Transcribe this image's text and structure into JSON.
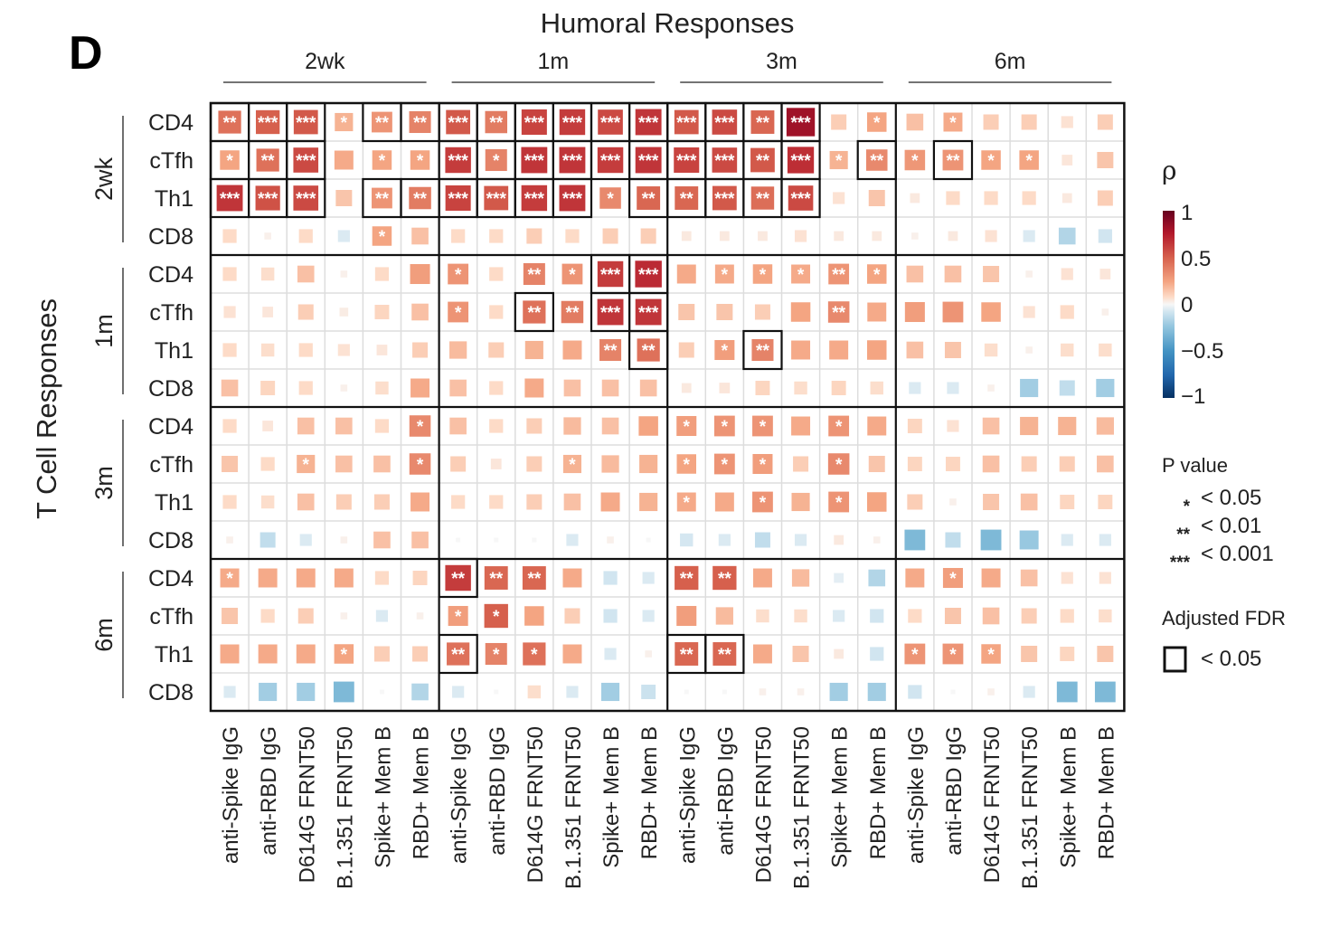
{
  "panel_label": "D",
  "chart_data": {
    "type": "heatmap",
    "title": "Humoral Responses",
    "ylabel": "T Cell Responses",
    "x_groups": [
      "2wk",
      "1m",
      "3m",
      "6m"
    ],
    "x_measures": [
      "anti-Spike IgG",
      "anti-RBD IgG",
      "D614G FRNT50",
      "B.1.351 FRNT50",
      "Spike+ Mem B",
      "RBD+ Mem B"
    ],
    "y_groups": [
      "2wk",
      "1m",
      "3m",
      "6m"
    ],
    "y_measures": [
      "CD4",
      "cTfh",
      "Th1",
      "CD8"
    ],
    "rho": [
      [
        0.55,
        0.6,
        0.62,
        0.35,
        0.45,
        0.5,
        0.62,
        0.52,
        0.68,
        0.7,
        0.66,
        0.72,
        0.62,
        0.66,
        0.58,
        0.85,
        0.25,
        0.4,
        0.3,
        0.38,
        0.25,
        0.25,
        0.15,
        0.25
      ],
      [
        0.4,
        0.55,
        0.66,
        0.38,
        0.4,
        0.4,
        0.7,
        0.5,
        0.72,
        0.72,
        0.7,
        0.72,
        0.68,
        0.66,
        0.62,
        0.74,
        0.35,
        0.48,
        0.44,
        0.45,
        0.4,
        0.4,
        0.12,
        0.28
      ],
      [
        0.72,
        0.64,
        0.66,
        0.28,
        0.45,
        0.52,
        0.68,
        0.62,
        0.7,
        0.72,
        0.48,
        0.58,
        0.58,
        0.62,
        0.56,
        0.66,
        0.15,
        0.28,
        0.1,
        0.2,
        0.2,
        0.2,
        0.1,
        0.25
      ],
      [
        0.2,
        0.05,
        0.2,
        -0.15,
        0.4,
        0.3,
        0.2,
        0.2,
        0.25,
        0.2,
        0.25,
        0.25,
        0.1,
        0.1,
        0.1,
        0.15,
        0.1,
        0.1,
        0.05,
        0.1,
        0.15,
        -0.15,
        -0.3,
        -0.2
      ],
      [
        0.2,
        0.18,
        0.3,
        0.05,
        0.2,
        0.42,
        0.45,
        0.2,
        0.5,
        0.45,
        0.7,
        0.75,
        0.38,
        0.38,
        0.4,
        0.38,
        0.45,
        0.4,
        0.3,
        0.3,
        0.28,
        0.05,
        0.15,
        0.12
      ],
      [
        0.15,
        0.12,
        0.25,
        0.08,
        0.22,
        0.3,
        0.45,
        0.2,
        0.55,
        0.52,
        0.72,
        0.72,
        0.28,
        0.28,
        0.25,
        0.4,
        0.48,
        0.38,
        0.42,
        0.45,
        0.4,
        0.15,
        0.2,
        0.05
      ],
      [
        0.2,
        0.18,
        0.2,
        0.15,
        0.12,
        0.25,
        0.32,
        0.25,
        0.35,
        0.38,
        0.5,
        0.55,
        0.25,
        0.42,
        0.5,
        0.38,
        0.38,
        0.4,
        0.3,
        0.28,
        0.18,
        0.05,
        0.18,
        0.18
      ],
      [
        0.3,
        0.22,
        0.2,
        0.05,
        0.18,
        0.38,
        0.3,
        0.2,
        0.38,
        0.3,
        0.3,
        0.3,
        0.1,
        0.12,
        0.22,
        0.18,
        0.22,
        0.18,
        -0.15,
        -0.15,
        0.05,
        -0.35,
        -0.25,
        -0.35
      ],
      [
        0.2,
        0.12,
        0.3,
        0.3,
        0.2,
        0.48,
        0.3,
        0.2,
        0.25,
        0.32,
        0.3,
        0.4,
        0.42,
        0.45,
        0.45,
        0.38,
        0.45,
        0.38,
        0.22,
        0.15,
        0.3,
        0.35,
        0.35,
        0.32
      ],
      [
        0.28,
        0.2,
        0.35,
        0.3,
        0.3,
        0.48,
        0.25,
        0.12,
        0.25,
        0.35,
        0.32,
        0.35,
        0.4,
        0.45,
        0.42,
        0.25,
        0.48,
        0.28,
        0.22,
        0.22,
        0.3,
        0.25,
        0.25,
        0.3
      ],
      [
        0.2,
        0.18,
        0.3,
        0.25,
        0.25,
        0.38,
        0.2,
        0.2,
        0.25,
        0.3,
        0.38,
        0.35,
        0.38,
        0.38,
        0.45,
        0.35,
        0.45,
        0.4,
        0.25,
        0.05,
        0.28,
        0.3,
        0.22,
        0.22
      ],
      [
        0.05,
        -0.25,
        -0.15,
        0.05,
        0.3,
        0.3,
        0.0,
        0.0,
        0.0,
        -0.15,
        0.05,
        0.0,
        -0.18,
        -0.15,
        -0.25,
        -0.15,
        0.1,
        0.05,
        -0.45,
        -0.25,
        -0.45,
        -0.38,
        -0.15,
        -0.15
      ],
      [
        0.38,
        0.38,
        0.38,
        0.38,
        0.2,
        0.22,
        0.7,
        0.58,
        0.58,
        0.38,
        -0.2,
        -0.15,
        0.6,
        0.6,
        0.38,
        0.32,
        -0.1,
        -0.3,
        0.38,
        0.42,
        0.38,
        0.3,
        0.15,
        0.15
      ],
      [
        0.28,
        0.2,
        0.25,
        0.05,
        -0.15,
        0.05,
        0.42,
        0.6,
        0.4,
        0.25,
        -0.2,
        -0.15,
        0.42,
        0.32,
        0.18,
        0.18,
        -0.15,
        -0.2,
        0.2,
        0.28,
        0.3,
        0.25,
        0.2,
        0.18
      ],
      [
        0.38,
        0.38,
        0.38,
        0.4,
        0.25,
        0.25,
        0.55,
        0.5,
        0.55,
        0.38,
        -0.15,
        0.05,
        0.58,
        0.58,
        0.38,
        0.28,
        0.1,
        -0.2,
        0.45,
        0.45,
        0.4,
        0.28,
        0.22,
        0.28
      ],
      [
        -0.15,
        -0.35,
        -0.35,
        -0.45,
        0.0,
        -0.3,
        -0.15,
        0.0,
        0.18,
        -0.15,
        -0.35,
        -0.22,
        0.0,
        0.0,
        0.05,
        0.05,
        -0.35,
        -0.35,
        -0.2,
        0.0,
        0.05,
        -0.15,
        -0.45,
        -0.45
      ]
    ],
    "stars": [
      [
        2,
        3,
        3,
        1,
        2,
        2,
        3,
        2,
        3,
        3,
        3,
        3,
        3,
        3,
        2,
        3,
        0,
        1,
        0,
        1,
        0,
        0,
        0,
        0
      ],
      [
        1,
        2,
        3,
        0,
        1,
        1,
        3,
        1,
        3,
        3,
        3,
        3,
        3,
        3,
        2,
        3,
        1,
        2,
        1,
        2,
        1,
        1,
        0,
        0
      ],
      [
        3,
        3,
        3,
        0,
        2,
        2,
        3,
        3,
        3,
        3,
        1,
        2,
        2,
        3,
        2,
        3,
        0,
        0,
        0,
        0,
        0,
        0,
        0,
        0
      ],
      [
        0,
        0,
        0,
        0,
        1,
        0,
        0,
        0,
        0,
        0,
        0,
        0,
        0,
        0,
        0,
        0,
        0,
        0,
        0,
        0,
        0,
        0,
        0,
        0
      ],
      [
        0,
        0,
        0,
        0,
        0,
        0,
        1,
        0,
        2,
        1,
        3,
        3,
        0,
        1,
        1,
        1,
        2,
        1,
        0,
        0,
        0,
        0,
        0,
        0
      ],
      [
        0,
        0,
        0,
        0,
        0,
        0,
        1,
        0,
        2,
        2,
        3,
        3,
        0,
        0,
        0,
        0,
        2,
        0,
        0,
        0,
        0,
        0,
        0,
        0
      ],
      [
        0,
        0,
        0,
        0,
        0,
        0,
        0,
        0,
        0,
        0,
        2,
        2,
        0,
        1,
        2,
        0,
        0,
        0,
        0,
        0,
        0,
        0,
        0,
        0
      ],
      [
        0,
        0,
        0,
        0,
        0,
        0,
        0,
        0,
        0,
        0,
        0,
        0,
        0,
        0,
        0,
        0,
        0,
        0,
        0,
        0,
        0,
        0,
        0,
        0
      ],
      [
        0,
        0,
        0,
        0,
        0,
        1,
        0,
        0,
        0,
        0,
        0,
        0,
        1,
        1,
        1,
        0,
        1,
        0,
        0,
        0,
        0,
        0,
        0,
        0
      ],
      [
        0,
        0,
        1,
        0,
        0,
        1,
        0,
        0,
        0,
        1,
        0,
        0,
        1,
        1,
        1,
        0,
        1,
        0,
        0,
        0,
        0,
        0,
        0,
        0
      ],
      [
        0,
        0,
        0,
        0,
        0,
        0,
        0,
        0,
        0,
        0,
        0,
        0,
        1,
        0,
        1,
        0,
        1,
        0,
        0,
        0,
        0,
        0,
        0,
        0
      ],
      [
        0,
        0,
        0,
        0,
        0,
        0,
        0,
        0,
        0,
        0,
        0,
        0,
        0,
        0,
        0,
        0,
        0,
        0,
        0,
        0,
        0,
        0,
        0,
        0
      ],
      [
        1,
        0,
        0,
        0,
        0,
        0,
        2,
        2,
        2,
        0,
        0,
        0,
        2,
        2,
        0,
        0,
        0,
        0,
        0,
        1,
        0,
        0,
        0,
        0
      ],
      [
        0,
        0,
        0,
        0,
        0,
        0,
        1,
        1,
        0,
        0,
        0,
        0,
        0,
        0,
        0,
        0,
        0,
        0,
        0,
        0,
        0,
        0,
        0,
        0
      ],
      [
        0,
        0,
        0,
        1,
        0,
        0,
        2,
        1,
        1,
        0,
        0,
        0,
        2,
        2,
        0,
        0,
        0,
        0,
        1,
        1,
        1,
        0,
        0,
        0
      ],
      [
        0,
        0,
        0,
        0,
        0,
        0,
        0,
        0,
        0,
        0,
        0,
        0,
        0,
        0,
        0,
        0,
        0,
        0,
        0,
        0,
        0,
        0,
        0,
        0
      ]
    ],
    "fdr_boxes": [
      [
        0,
        0
      ],
      [
        0,
        1
      ],
      [
        0,
        2
      ],
      [
        0,
        4
      ],
      [
        0,
        5
      ],
      [
        0,
        6
      ],
      [
        0,
        7
      ],
      [
        0,
        8
      ],
      [
        0,
        9
      ],
      [
        0,
        10
      ],
      [
        0,
        11
      ],
      [
        0,
        12
      ],
      [
        0,
        13
      ],
      [
        0,
        14
      ],
      [
        0,
        15
      ],
      [
        1,
        0
      ],
      [
        1,
        1
      ],
      [
        1,
        2
      ],
      [
        1,
        6
      ],
      [
        1,
        7
      ],
      [
        1,
        8
      ],
      [
        1,
        9
      ],
      [
        1,
        10
      ],
      [
        1,
        11
      ],
      [
        1,
        12
      ],
      [
        1,
        13
      ],
      [
        1,
        14
      ],
      [
        1,
        15
      ],
      [
        1,
        17
      ],
      [
        1,
        19
      ],
      [
        2,
        0
      ],
      [
        2,
        1
      ],
      [
        2,
        2
      ],
      [
        2,
        4
      ],
      [
        2,
        5
      ],
      [
        2,
        6
      ],
      [
        2,
        7
      ],
      [
        2,
        8
      ],
      [
        2,
        9
      ],
      [
        2,
        11
      ],
      [
        2,
        12
      ],
      [
        2,
        13
      ],
      [
        2,
        14
      ],
      [
        2,
        15
      ],
      [
        4,
        10
      ],
      [
        4,
        11
      ],
      [
        5,
        8
      ],
      [
        5,
        10
      ],
      [
        5,
        11
      ],
      [
        6,
        11
      ],
      [
        6,
        14
      ],
      [
        12,
        6
      ],
      [
        14,
        6
      ],
      [
        14,
        12
      ],
      [
        14,
        13
      ]
    ],
    "color_scale": {
      "label": "ρ",
      "ticks": [
        "1",
        "0.5",
        "0",
        "−0.5",
        "−1"
      ],
      "low": "#053061",
      "mid": "#f7f7f7",
      "high": "#67001f"
    },
    "legend_p": {
      "title": "P value",
      "items": [
        {
          "symbol": "*",
          "text": "< 0.05"
        },
        {
          "symbol": "**",
          "text": "< 0.01"
        },
        {
          "symbol": "***",
          "text": "< 0.001"
        }
      ]
    },
    "legend_fdr": {
      "title": "Adjusted FDR",
      "text": "< 0.05"
    },
    "grid": true,
    "legend_position": "right"
  }
}
